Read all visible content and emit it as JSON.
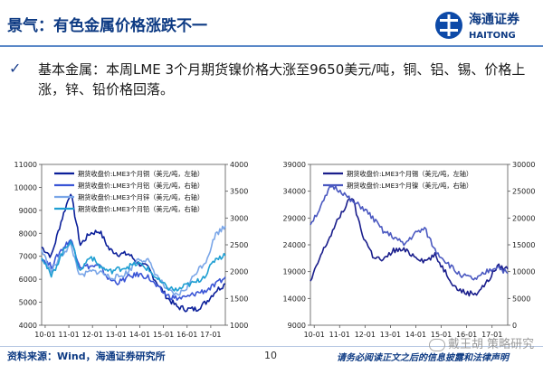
{
  "header": {
    "title": "景气：有色金属价格涨跌不一",
    "logo_text": "海通证券",
    "logo_subtext": "HAITONG"
  },
  "bullet": {
    "text": "基本金属：本周LME 3个月期货镍价格大涨至9650美元/吨，铜、铝、锡、价格上涨，锌、铅价格回落。"
  },
  "chart_data": [
    {
      "type": "line",
      "x_ticks": [
        "10-01",
        "11-01",
        "12-01",
        "13-01",
        "14-01",
        "15-01",
        "16-01",
        "17-01"
      ],
      "ylim_left": [
        4000,
        11000
      ],
      "ylim_right": [
        1000,
        4000
      ],
      "y_ticks_left": [
        4000,
        5000,
        6000,
        7000,
        8000,
        9000,
        10000,
        11000
      ],
      "y_ticks_right": [
        1000,
        1500,
        2000,
        2500,
        3000,
        3500,
        4000
      ],
      "legend_position": "top",
      "series": [
        {
          "name": "期货收盘价:LME3个月铜（美元/吨，左轴）",
          "axis": "left",
          "color": "#0b1f9a",
          "values": [
            7400,
            7000,
            8500,
            9800,
            7500,
            8000,
            8100,
            7300,
            7100,
            7100,
            6700,
            6500,
            5800,
            5200,
            4800,
            4700,
            4700,
            5000,
            5500,
            5800
          ]
        },
        {
          "name": "期货收盘价:LME3个月铝（美元/吨，右轴）",
          "axis": "right",
          "color": "#3a55d6",
          "values": [
            2250,
            2100,
            2400,
            2600,
            2100,
            2100,
            2100,
            1850,
            1800,
            1900,
            1950,
            1900,
            1700,
            1550,
            1500,
            1520,
            1600,
            1650,
            1750,
            1900
          ]
        },
        {
          "name": "期货收盘价:LME3个月锌（美元/吨，右轴）",
          "axis": "right",
          "color": "#7aa6e8",
          "values": [
            2400,
            2000,
            2300,
            2500,
            1900,
            2000,
            2000,
            1900,
            1900,
            2000,
            2250,
            2200,
            1900,
            1650,
            1550,
            1700,
            2000,
            2200,
            2700,
            2850
          ]
        },
        {
          "name": "期货收盘价:LME3个月铅（美元/吨，右轴）",
          "axis": "right",
          "color": "#1f9fd2",
          "values": [
            2300,
            1900,
            2300,
            2600,
            2000,
            2300,
            2100,
            2000,
            2050,
            2100,
            2150,
            2050,
            1850,
            1700,
            1650,
            1750,
            1800,
            1950,
            2250,
            2300
          ]
        }
      ]
    },
    {
      "type": "line",
      "x_ticks": [
        "10-01",
        "11-01",
        "12-01",
        "13-01",
        "14-01",
        "15-01",
        "16-01",
        "17-01"
      ],
      "ylim_left": [
        9000,
        39000
      ],
      "ylim_right": [
        0,
        30000
      ],
      "y_ticks_left": [
        9000,
        14000,
        19000,
        24000,
        29000,
        34000,
        39000
      ],
      "y_ticks_right": [
        0,
        5000,
        10000,
        15000,
        20000,
        25000,
        30000
      ],
      "legend_position": "top",
      "series": [
        {
          "name": "期货收盘价:LME3个月锡（美元/吨，左轴）",
          "axis": "left",
          "color": "#1a1e8c",
          "values": [
            17000,
            22000,
            26000,
            30000,
            33000,
            26000,
            22000,
            21000,
            23000,
            23000,
            22000,
            21000,
            22000,
            19000,
            16000,
            15000,
            15000,
            17000,
            20000,
            19500
          ]
        },
        {
          "name": "期货收盘价:LME3个月镍（美元/吨，右轴）",
          "axis": "right",
          "color": "#4a58c0",
          "values": [
            19000,
            22000,
            26000,
            25000,
            23000,
            22000,
            20000,
            17500,
            16500,
            15000,
            17000,
            18000,
            14000,
            12000,
            10000,
            9000,
            8500,
            10000,
            11000,
            9650
          ]
        }
      ]
    }
  ],
  "footer": {
    "source": "资料来源：Wind，海通证券研究所",
    "page": "10",
    "disclaimer": "请务必阅读正文之后的信息披露和法律声明",
    "watermark": "戴王胡 策略研究"
  }
}
